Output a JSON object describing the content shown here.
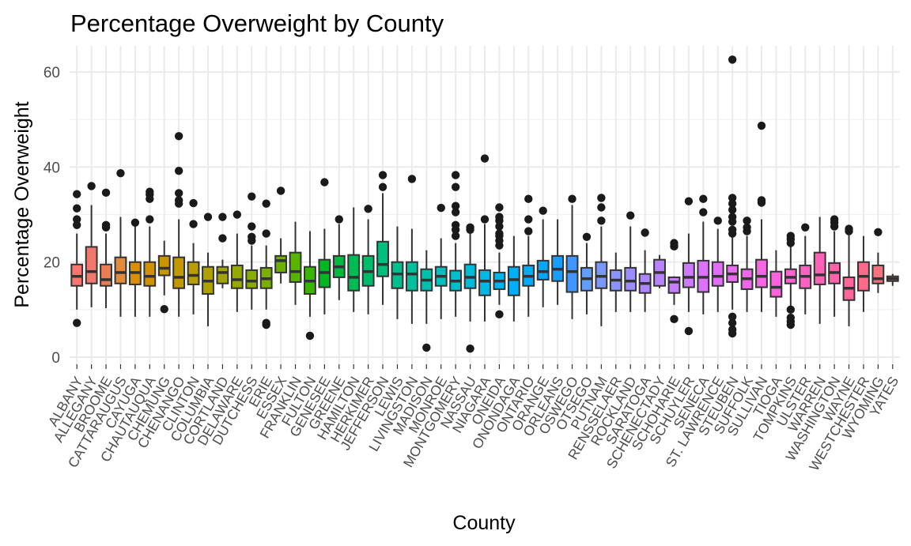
{
  "chart_data": {
    "type": "boxplot",
    "title": "Percentage Overweight by County",
    "xlabel": "County",
    "ylabel": "Percentage Overweight",
    "ylim": [
      -1.5,
      65.5
    ],
    "yticks": [
      0,
      20,
      40,
      60
    ],
    "grid": true,
    "legend": "none",
    "series": [
      {
        "name": "ALBANY",
        "color": "#F8766D",
        "stats": [
          10,
          15,
          17,
          19.5,
          26
        ],
        "outliers": [
          7.2,
          27.8,
          29,
          31.3,
          34.3
        ]
      },
      {
        "name": "ALLEGANY",
        "color": "#F0786D",
        "stats": [
          10.5,
          15.5,
          18,
          23.2,
          32
        ],
        "outliers": [
          36
        ]
      },
      {
        "name": "BROOME",
        "color": "#E97C52",
        "stats": [
          10.3,
          15,
          16.3,
          19.5,
          26
        ],
        "outliers": [
          27.3,
          27.8,
          34.6
        ]
      },
      {
        "name": "CATTARAUGUS",
        "color": "#E48A3B",
        "stats": [
          8.5,
          15.5,
          17.8,
          21,
          29.5
        ],
        "outliers": [
          38.7
        ]
      },
      {
        "name": "CAYUGA",
        "color": "#DB8E00",
        "stats": [
          8.5,
          15.3,
          17.8,
          20,
          28
        ],
        "outliers": [
          28.3
        ]
      },
      {
        "name": "CHAUTAUQUA",
        "color": "#D29200",
        "stats": [
          8.5,
          15,
          17,
          20,
          27.5
        ],
        "outliers": [
          29,
          33.3,
          34.2,
          34.8
        ]
      },
      {
        "name": "CHEMUNG",
        "color": "#CB9500",
        "stats": [
          13,
          17.2,
          18.7,
          21.3,
          24.5
        ],
        "outliers": [
          10.1
        ]
      },
      {
        "name": "CHENANGO",
        "color": "#C39900",
        "stats": [
          8.5,
          14.5,
          16.8,
          21,
          29
        ],
        "outliers": [
          32.3,
          33,
          34.5,
          39.2,
          46.5
        ]
      },
      {
        "name": "CLINTON",
        "color": "#BA9D00",
        "stats": [
          9,
          15.3,
          17.2,
          20,
          24
        ],
        "outliers": [
          28,
          32.4
        ]
      },
      {
        "name": "COLUMBIA",
        "color": "#AFA100",
        "stats": [
          6.5,
          13.3,
          16,
          19,
          22
        ],
        "outliers": [
          29.5
        ]
      },
      {
        "name": "CORTLAND",
        "color": "#A3A500",
        "stats": [
          14.5,
          15.5,
          17.8,
          19,
          20.5
        ],
        "outliers": [
          25,
          29.5
        ]
      },
      {
        "name": "DELAWARE",
        "color": "#96A900",
        "stats": [
          9.5,
          14.5,
          16.3,
          19.3,
          26
        ],
        "outliers": [
          30
        ]
      },
      {
        "name": "DUTCHESS",
        "color": "#88AC00",
        "stats": [
          10,
          14.5,
          16,
          18.3,
          23.5
        ],
        "outliers": [
          24.5,
          25.3,
          27.5,
          33.8
        ]
      },
      {
        "name": "ERIE",
        "color": "#7AAF00",
        "stats": [
          10,
          14.5,
          16.5,
          18.8,
          23.5
        ],
        "outliers": [
          6.8,
          7.2,
          26,
          32.3
        ]
      },
      {
        "name": "ESSEX",
        "color": "#6BB100",
        "stats": [
          15.5,
          17.8,
          20.3,
          21.3,
          25
        ],
        "outliers": [
          35
        ]
      },
      {
        "name": "FRANKLIN",
        "color": "#57B400",
        "stats": [
          11,
          15.8,
          18,
          22,
          28.5
        ],
        "outliers": []
      },
      {
        "name": "FULTON",
        "color": "#3BB600",
        "stats": [
          8.5,
          13.3,
          16,
          19,
          26.5
        ],
        "outliers": [
          4.5
        ]
      },
      {
        "name": "GENESEE",
        "color": "#00B81F",
        "stats": [
          9,
          14.7,
          17.8,
          20.5,
          27
        ],
        "outliers": [
          36.8
        ]
      },
      {
        "name": "GREENE",
        "color": "#00BA40",
        "stats": [
          12,
          16.8,
          19,
          21.3,
          28
        ],
        "outliers": [
          29
        ]
      },
      {
        "name": "HAMILTON",
        "color": "#00BB55",
        "stats": [
          9.5,
          14,
          16.8,
          21.5,
          31.5
        ],
        "outliers": []
      },
      {
        "name": "HERKIMER",
        "color": "#00BC6A",
        "stats": [
          9,
          15,
          18,
          21.3,
          29
        ],
        "outliers": [
          31.2
        ]
      },
      {
        "name": "JEFFERSON",
        "color": "#00BE7C",
        "stats": [
          11,
          17,
          19.5,
          24.3,
          34.5
        ],
        "outliers": [
          35.8,
          38.3
        ]
      },
      {
        "name": "LEWIS",
        "color": "#00BF8E",
        "stats": [
          8,
          14.5,
          17.5,
          20,
          27.5
        ],
        "outliers": []
      },
      {
        "name": "LIVINGSTON",
        "color": "#00C09F",
        "stats": [
          7,
          14,
          17.5,
          20,
          27
        ],
        "outliers": [
          37.5
        ]
      },
      {
        "name": "MADISON",
        "color": "#00C0AE",
        "stats": [
          7,
          14,
          16.2,
          18.5,
          22.5
        ],
        "outliers": [
          2
        ]
      },
      {
        "name": "MONROE",
        "color": "#00C0BD",
        "stats": [
          8,
          15,
          17,
          19,
          25
        ],
        "outliers": [
          31.4
        ]
      },
      {
        "name": "MONTGOMERY",
        "color": "#00BECB",
        "stats": [
          8.5,
          14,
          16,
          18.2,
          24
        ],
        "outliers": [
          25.5,
          26.8,
          27.8,
          30.5,
          31.8,
          35.8,
          38.3
        ]
      },
      {
        "name": "NASSAU",
        "color": "#00BBD8",
        "stats": [
          7.5,
          14.5,
          16.8,
          19.5,
          26
        ],
        "outliers": [
          1.8,
          26.8,
          27.3
        ]
      },
      {
        "name": "NIAGARA",
        "color": "#00B8E4",
        "stats": [
          7.5,
          13,
          16,
          18.3,
          28
        ],
        "outliers": [
          29,
          41.8
        ]
      },
      {
        "name": "ONEIDA",
        "color": "#00B4EF",
        "stats": [
          11,
          14.3,
          16,
          17.8,
          22
        ],
        "outliers": [
          9,
          23.5,
          24.5,
          25.5,
          26,
          27.5,
          28.7,
          29.5,
          31.5
        ]
      },
      {
        "name": "ONONDAGA",
        "color": "#00B0F6",
        "stats": [
          7.5,
          13,
          16.3,
          19,
          25.5
        ],
        "outliers": []
      },
      {
        "name": "ONTARIO",
        "color": "#00ACFC",
        "stats": [
          8.5,
          15,
          17,
          19.3,
          25.5
        ],
        "outliers": [
          26.5,
          29,
          33.3
        ]
      },
      {
        "name": "ORANGE",
        "color": "#00A6FF",
        "stats": [
          10.5,
          16.3,
          18,
          20.3,
          29
        ],
        "outliers": [
          30.8
        ]
      },
      {
        "name": "ORLEANS",
        "color": "#179EFF",
        "stats": [
          11,
          16,
          18.5,
          21.3,
          29
        ],
        "outliers": []
      },
      {
        "name": "OSWEGO",
        "color": "#3F96FF",
        "stats": [
          8,
          13.7,
          18,
          21.3,
          32
        ],
        "outliers": [
          33.3
        ]
      },
      {
        "name": "OTSEGO",
        "color": "#619CFF",
        "stats": [
          9,
          14,
          16.5,
          18.8,
          24
        ],
        "outliers": [
          25.3
        ]
      },
      {
        "name": "PUTNAM",
        "color": "#7997FF",
        "stats": [
          6.5,
          14.5,
          17,
          20,
          27.5
        ],
        "outliers": [
          28.7,
          31.5,
          33.5
        ]
      },
      {
        "name": "RENSSELAER",
        "color": "#8B93FF",
        "stats": [
          9.5,
          14,
          16.2,
          18.3,
          22
        ],
        "outliers": []
      },
      {
        "name": "ROCKLAND",
        "color": "#9C8DFF",
        "stats": [
          9.5,
          14,
          16,
          18.8,
          27.5
        ],
        "outliers": [
          29.8
        ]
      },
      {
        "name": "SARATOGA",
        "color": "#AB88FF",
        "stats": [
          9.5,
          13.5,
          15.5,
          17.5,
          22.5
        ],
        "outliers": [
          26.2
        ]
      },
      {
        "name": "SCHENECTADY",
        "color": "#B983FF",
        "stats": [
          14.5,
          15,
          17.8,
          20.5,
          21.5
        ],
        "outliers": []
      },
      {
        "name": "SCHOHARIE",
        "color": "#C57DFF",
        "stats": [
          11,
          13.5,
          15.8,
          16.8,
          17
        ],
        "outliers": [
          8,
          23.3,
          24
        ]
      },
      {
        "name": "SCHUYLER",
        "color": "#D079FF",
        "stats": [
          9.5,
          14.7,
          16.8,
          19.8,
          26
        ],
        "outliers": [
          5.5,
          32.8
        ]
      },
      {
        "name": "SENECA",
        "color": "#DA72FB",
        "stats": [
          9,
          13.7,
          16.8,
          20.3,
          28.5
        ],
        "outliers": [
          30.5,
          33.3
        ]
      },
      {
        "name": "ST. LAWRENCE",
        "color": "#E26EF7",
        "stats": [
          9.5,
          15,
          17,
          20,
          27
        ],
        "outliers": [
          28.7
        ]
      },
      {
        "name": "STEUBEN",
        "color": "#EA6BF2",
        "stats": [
          10,
          15.8,
          17.5,
          19.3,
          25.5
        ],
        "outliers": [
          5,
          5.8,
          7.2,
          8.5,
          26,
          26.8,
          28.5,
          29.5,
          31,
          32.3,
          33.5,
          62.6
        ]
      },
      {
        "name": "SUFFOLK",
        "color": "#F066EA",
        "stats": [
          9.5,
          14.3,
          16.5,
          18.5,
          25.5
        ],
        "outliers": [
          26.5,
          27.3,
          28.7
        ]
      },
      {
        "name": "SULLIVAN",
        "color": "#F565E4",
        "stats": [
          9.5,
          14.7,
          17,
          20.5,
          29
        ],
        "outliers": [
          32.5,
          33,
          48.7
        ]
      },
      {
        "name": "TIOGA",
        "color": "#FA63DB",
        "stats": [
          8.5,
          12.7,
          14.7,
          18,
          22.5
        ],
        "outliers": []
      },
      {
        "name": "TOMPKINS",
        "color": "#FD62CF",
        "stats": [
          10,
          15.5,
          16.8,
          18.5,
          23.5
        ],
        "outliers": [
          6.8,
          7.5,
          8.3,
          10,
          24,
          24.8,
          25.5
        ]
      },
      {
        "name": "ULSTER",
        "color": "#FF61C3",
        "stats": [
          9,
          14.5,
          17,
          19.3,
          25.5
        ],
        "outliers": [
          27.3
        ]
      },
      {
        "name": "WARREN",
        "color": "#FF62B6",
        "stats": [
          7,
          15.3,
          17.3,
          22,
          29.5
        ],
        "outliers": []
      },
      {
        "name": "WASHINGTON",
        "color": "#FF64A9",
        "stats": [
          8.5,
          15.5,
          17.8,
          19.8,
          26.5
        ],
        "outliers": [
          27.5,
          28.3,
          29
        ]
      },
      {
        "name": "WAYNE",
        "color": "#FF6699",
        "stats": [
          6.5,
          12,
          14.5,
          16.8,
          26
        ],
        "outliers": [
          26.5,
          27
        ]
      },
      {
        "name": "WESTCHESTER",
        "color": "#FD6A8A",
        "stats": [
          9.5,
          14,
          17,
          20,
          25.5
        ],
        "outliers": []
      },
      {
        "name": "WYOMING",
        "color": "#F9717C",
        "stats": [
          13.5,
          15.5,
          16.5,
          19.3,
          22
        ],
        "outliers": [
          26.3
        ]
      },
      {
        "name": "YATES",
        "color": "#F8766D",
        "stats": [
          15,
          16,
          16.5,
          17,
          17.5
        ],
        "outliers": []
      }
    ]
  }
}
